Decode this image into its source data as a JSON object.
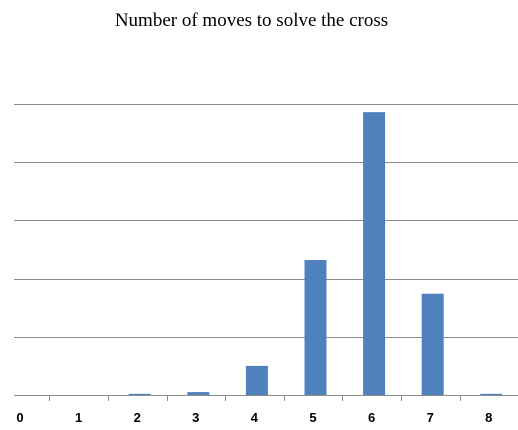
{
  "chart_data": {
    "type": "bar",
    "title": "Number of moves to solve the cross",
    "xlabel": "",
    "ylabel": "",
    "categories": [
      "0",
      "1",
      "2",
      "3",
      "4",
      "5",
      "6",
      "7",
      "8"
    ],
    "values": [
      0,
      0,
      0.02,
      0.05,
      0.5,
      2.32,
      4.86,
      1.74,
      0.02
    ],
    "ylim": [
      0,
      5
    ],
    "grid": true,
    "y_tick_labels_shown": false,
    "bar_color": "#4F81BD",
    "grid_color": "#8C8C8C",
    "axis_color": "#8C8C8C"
  }
}
